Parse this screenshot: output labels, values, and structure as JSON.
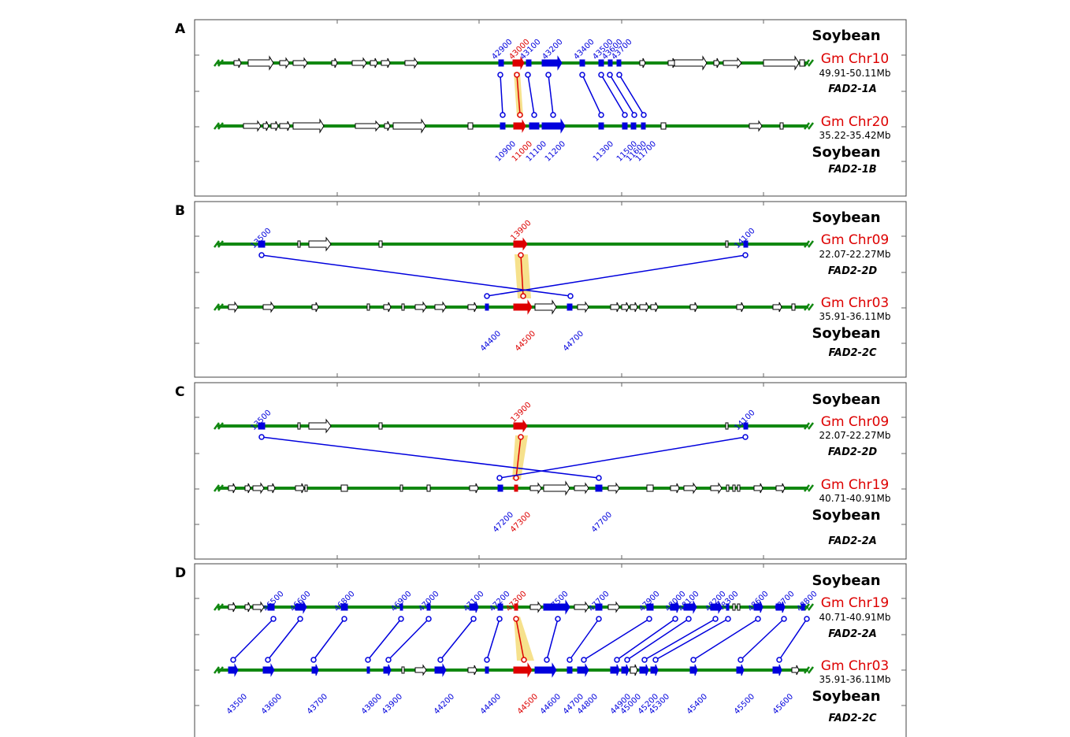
{
  "panels": [
    {
      "letter": "A",
      "top": {
        "species": "Soybean",
        "chr": "Gm Chr10",
        "range": "49.91-50.11Mb",
        "gene": "FAD2-1A"
      },
      "bottom": {
        "species": "Soybean",
        "chr": "Gm Chr20",
        "range": "35.22-35.42Mb",
        "gene": "FAD2-1B"
      },
      "top_tick_labels": [
        "42900",
        "43000",
        "43100",
        "43200",
        "43400",
        "43500",
        "43600",
        "43700"
      ],
      "bottom_tick_labels": [
        "10900",
        "11000",
        "11100",
        "11200",
        "11300",
        "11500",
        "11600",
        "11700"
      ]
    },
    {
      "letter": "B",
      "top": {
        "species": "Soybean",
        "chr": "Gm Chr09",
        "range": "22.07-22.27Mb",
        "gene": "FAD2-2D"
      },
      "bottom": {
        "species": "Soybean",
        "chr": "Gm Chr03",
        "range": "35.91-36.11Mb",
        "gene": "FAD2-2C"
      },
      "top_tick_labels": [
        "13500",
        "13900",
        "14100"
      ],
      "bottom_tick_labels": [
        "44400",
        "44500",
        "44700"
      ]
    },
    {
      "letter": "C",
      "top": {
        "species": "Soybean",
        "chr": "Gm Chr09",
        "range": "22.07-22.27Mb",
        "gene": "FAD2-2D"
      },
      "bottom": {
        "species": "Soybean",
        "chr": "Gm Chr19",
        "range": "40.71-40.91Mb",
        "gene": "FAD2-2A"
      },
      "top_tick_labels": [
        "13500",
        "13900",
        "14100"
      ],
      "bottom_tick_labels": [
        "47200",
        "47300",
        "47700"
      ]
    },
    {
      "letter": "D",
      "top": {
        "species": "Soybean",
        "chr": "Gm Chr19",
        "range": "40.71-40.91Mb",
        "gene": "FAD2-2A"
      },
      "bottom": {
        "species": "Soybean",
        "chr": "Gm Chr03",
        "range": "35.91-36.11Mb",
        "gene": "FAD2-2C"
      },
      "top_tick_labels": [
        "46500",
        "46600",
        "46800",
        "46900",
        "47000",
        "47100",
        "47200",
        "47300",
        "47500",
        "47700",
        "47900",
        "48000",
        "48100",
        "48200",
        "48300",
        "48600",
        "48700",
        "48800"
      ],
      "bottom_tick_labels": [
        "43500",
        "43600",
        "43700",
        "43800",
        "43900",
        "44200",
        "44400",
        "44500",
        "44600",
        "44700",
        "44800",
        "44900",
        "45000",
        "45200",
        "45300",
        "45400",
        "45500",
        "45600"
      ]
    }
  ],
  "colors": {
    "chromosome": "#118811",
    "syntenic_gene": "#0000dd",
    "target_gene": "#dd0000",
    "highlight": "#f5dc78",
    "other_gene": "#ffffff",
    "frame": "#444444"
  }
}
